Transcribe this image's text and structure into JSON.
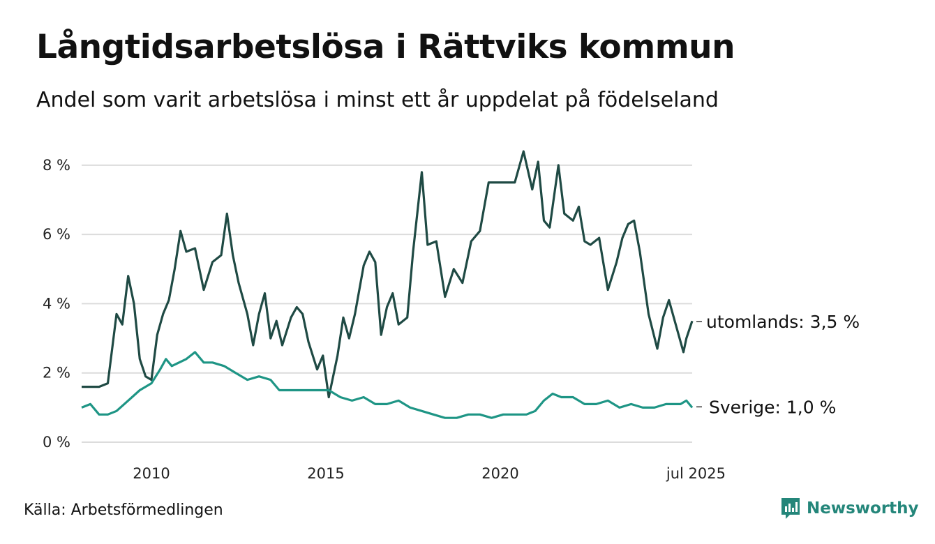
{
  "title": "Långtidsarbetslösa i Rättviks kommun",
  "subtitle": "Andel som varit arbetslösa i minst ett år uppdelat på födelseland",
  "source": "Källa: Arbetsförmedlingen",
  "brand": {
    "name": "Newsworthy",
    "icon": "newsworthy-logo-icon",
    "color": "#24867a"
  },
  "chart_data": {
    "type": "line",
    "ylim": [
      0,
      8.5
    ],
    "xlim": [
      "2008-01",
      "2025-07"
    ],
    "yticks": [
      {
        "value": 0,
        "label": "0 %"
      },
      {
        "value": 2,
        "label": "2 %"
      },
      {
        "value": 4,
        "label": "4 %"
      },
      {
        "value": 6,
        "label": "6 %"
      },
      {
        "value": 8,
        "label": "8 %"
      }
    ],
    "xticks": [
      {
        "value": "2010-01",
        "label": "2010"
      },
      {
        "value": "2015-01",
        "label": "2015"
      },
      {
        "value": "2020-01",
        "label": "2020"
      },
      {
        "value": "2025-07",
        "label": "jul 2025"
      }
    ],
    "grid": true,
    "legend": "end-labels",
    "series": [
      {
        "name": "utomlands",
        "end_label": "utomlands: 3,5 %",
        "color": "#1f4a44",
        "points": [
          [
            "2008-01",
            1.6
          ],
          [
            "2008-04",
            1.6
          ],
          [
            "2008-07",
            1.6
          ],
          [
            "2008-10",
            1.7
          ],
          [
            "2009-01",
            3.7
          ],
          [
            "2009-03",
            3.4
          ],
          [
            "2009-05",
            4.8
          ],
          [
            "2009-07",
            4.0
          ],
          [
            "2009-09",
            2.4
          ],
          [
            "2009-11",
            1.9
          ],
          [
            "2010-01",
            1.8
          ],
          [
            "2010-03",
            3.1
          ],
          [
            "2010-05",
            3.7
          ],
          [
            "2010-07",
            4.1
          ],
          [
            "2010-09",
            5.0
          ],
          [
            "2010-11",
            6.1
          ],
          [
            "2011-01",
            5.5
          ],
          [
            "2011-04",
            5.6
          ],
          [
            "2011-07",
            4.4
          ],
          [
            "2011-10",
            5.2
          ],
          [
            "2012-01",
            5.4
          ],
          [
            "2012-03",
            6.6
          ],
          [
            "2012-05",
            5.4
          ],
          [
            "2012-07",
            4.6
          ],
          [
            "2012-10",
            3.7
          ],
          [
            "2012-12",
            2.8
          ],
          [
            "2013-02",
            3.7
          ],
          [
            "2013-04",
            4.3
          ],
          [
            "2013-06",
            3.0
          ],
          [
            "2013-08",
            3.5
          ],
          [
            "2013-10",
            2.8
          ],
          [
            "2014-01",
            3.6
          ],
          [
            "2014-03",
            3.9
          ],
          [
            "2014-05",
            3.7
          ],
          [
            "2014-07",
            2.9
          ],
          [
            "2014-10",
            2.1
          ],
          [
            "2014-12",
            2.5
          ],
          [
            "2015-02",
            1.3
          ],
          [
            "2015-05",
            2.5
          ],
          [
            "2015-07",
            3.6
          ],
          [
            "2015-09",
            3.0
          ],
          [
            "2015-11",
            3.7
          ],
          [
            "2016-02",
            5.1
          ],
          [
            "2016-04",
            5.5
          ],
          [
            "2016-06",
            5.2
          ],
          [
            "2016-08",
            3.1
          ],
          [
            "2016-10",
            3.9
          ],
          [
            "2016-12",
            4.3
          ],
          [
            "2017-02",
            3.4
          ],
          [
            "2017-05",
            3.6
          ],
          [
            "2017-07",
            5.5
          ],
          [
            "2017-10",
            7.8
          ],
          [
            "2017-12",
            5.7
          ],
          [
            "2018-03",
            5.8
          ],
          [
            "2018-06",
            4.2
          ],
          [
            "2018-09",
            5.0
          ],
          [
            "2018-12",
            4.6
          ],
          [
            "2019-03",
            5.8
          ],
          [
            "2019-06",
            6.1
          ],
          [
            "2019-09",
            7.5
          ],
          [
            "2019-12",
            7.5
          ],
          [
            "2020-03",
            7.5
          ],
          [
            "2020-06",
            7.5
          ],
          [
            "2020-09",
            8.4
          ],
          [
            "2020-12",
            7.3
          ],
          [
            "2021-02",
            8.1
          ],
          [
            "2021-04",
            6.4
          ],
          [
            "2021-06",
            6.2
          ],
          [
            "2021-09",
            8.0
          ],
          [
            "2021-11",
            6.6
          ],
          [
            "2022-02",
            6.4
          ],
          [
            "2022-04",
            6.8
          ],
          [
            "2022-06",
            5.8
          ],
          [
            "2022-08",
            5.7
          ],
          [
            "2022-11",
            5.9
          ],
          [
            "2023-02",
            4.4
          ],
          [
            "2023-05",
            5.2
          ],
          [
            "2023-07",
            5.9
          ],
          [
            "2023-09",
            6.3
          ],
          [
            "2023-11",
            6.4
          ],
          [
            "2024-01",
            5.5
          ],
          [
            "2024-04",
            3.7
          ],
          [
            "2024-07",
            2.7
          ],
          [
            "2024-09",
            3.6
          ],
          [
            "2024-11",
            4.1
          ],
          [
            "2025-01",
            3.5
          ],
          [
            "2025-04",
            2.6
          ],
          [
            "2025-05",
            3.0
          ],
          [
            "2025-07",
            3.5
          ]
        ]
      },
      {
        "name": "Sverige",
        "end_label": "Sverige: 1,0 %",
        "color": "#1e9585",
        "points": [
          [
            "2008-01",
            1.0
          ],
          [
            "2008-04",
            1.1
          ],
          [
            "2008-07",
            0.8
          ],
          [
            "2008-10",
            0.8
          ],
          [
            "2009-01",
            0.9
          ],
          [
            "2009-05",
            1.2
          ],
          [
            "2009-09",
            1.5
          ],
          [
            "2010-01",
            1.7
          ],
          [
            "2010-04",
            2.1
          ],
          [
            "2010-06",
            2.4
          ],
          [
            "2010-08",
            2.2
          ],
          [
            "2011-01",
            2.4
          ],
          [
            "2011-04",
            2.6
          ],
          [
            "2011-07",
            2.3
          ],
          [
            "2011-10",
            2.3
          ],
          [
            "2012-02",
            2.2
          ],
          [
            "2012-06",
            2.0
          ],
          [
            "2012-10",
            1.8
          ],
          [
            "2013-02",
            1.9
          ],
          [
            "2013-06",
            1.8
          ],
          [
            "2013-09",
            1.5
          ],
          [
            "2014-01",
            1.5
          ],
          [
            "2014-06",
            1.5
          ],
          [
            "2014-10",
            1.5
          ],
          [
            "2015-02",
            1.5
          ],
          [
            "2015-06",
            1.3
          ],
          [
            "2015-10",
            1.2
          ],
          [
            "2016-02",
            1.3
          ],
          [
            "2016-06",
            1.1
          ],
          [
            "2016-10",
            1.1
          ],
          [
            "2017-02",
            1.2
          ],
          [
            "2017-06",
            1.0
          ],
          [
            "2017-10",
            0.9
          ],
          [
            "2018-02",
            0.8
          ],
          [
            "2018-06",
            0.7
          ],
          [
            "2018-10",
            0.7
          ],
          [
            "2019-02",
            0.8
          ],
          [
            "2019-06",
            0.8
          ],
          [
            "2019-10",
            0.7
          ],
          [
            "2020-02",
            0.8
          ],
          [
            "2020-06",
            0.8
          ],
          [
            "2020-10",
            0.8
          ],
          [
            "2021-01",
            0.9
          ],
          [
            "2021-04",
            1.2
          ],
          [
            "2021-07",
            1.4
          ],
          [
            "2021-10",
            1.3
          ],
          [
            "2022-02",
            1.3
          ],
          [
            "2022-06",
            1.1
          ],
          [
            "2022-10",
            1.1
          ],
          [
            "2023-02",
            1.2
          ],
          [
            "2023-06",
            1.0
          ],
          [
            "2023-10",
            1.1
          ],
          [
            "2024-02",
            1.0
          ],
          [
            "2024-06",
            1.0
          ],
          [
            "2024-10",
            1.1
          ],
          [
            "2025-03",
            1.1
          ],
          [
            "2025-05",
            1.2
          ],
          [
            "2025-07",
            1.0
          ]
        ]
      }
    ]
  }
}
